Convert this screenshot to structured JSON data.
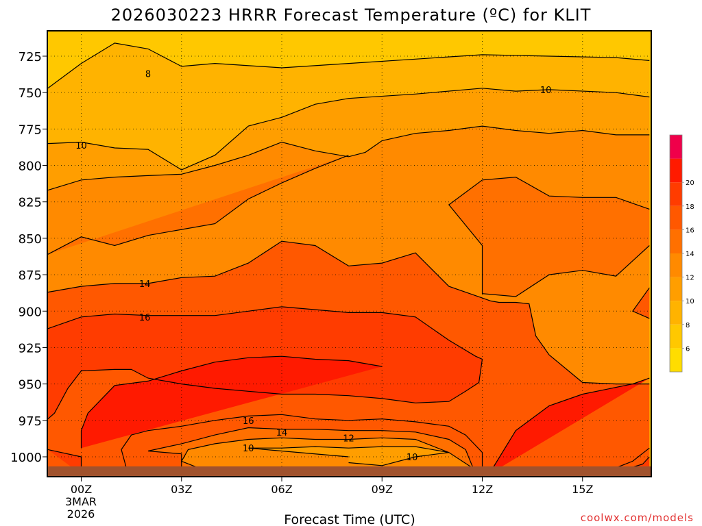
{
  "title": "2026030223 HRRR Forecast Temperature (ºC) for KLIT",
  "xlabel": "Forecast Time (UTC)",
  "watermark": "coolwx.com/models",
  "chart_data": {
    "type": "heatmap",
    "title": "2026030223 HRRR Forecast Temperature (ºC) for KLIT",
    "xlabel": "Forecast Time (UTC)",
    "ylabel": "",
    "x_ticks": [
      "00Z",
      "03Z",
      "06Z",
      "09Z",
      "12Z",
      "15Z"
    ],
    "x_date_label": [
      "3MAR",
      "2026"
    ],
    "y_ticks": [
      725,
      750,
      775,
      800,
      825,
      850,
      875,
      900,
      925,
      950,
      975,
      1000
    ],
    "xlim_hours": [
      -1,
      17
    ],
    "ylim_hPa": [
      710,
      1012
    ],
    "grid": "dotted",
    "colorbar": {
      "levels": [
        4,
        6,
        8,
        10,
        12,
        14,
        16,
        18,
        20,
        22
      ],
      "labels": [
        "6",
        "8",
        "10",
        "12",
        "14",
        "16",
        "18",
        "20"
      ],
      "colors": [
        "#ffdd00",
        "#ffc800",
        "#ffb300",
        "#ff9e00",
        "#ff8a00",
        "#ff7000",
        "#ff5800",
        "#ff3c00",
        "#ff1a00",
        "#f0004a"
      ],
      "placement": "right"
    },
    "contour_labels": [
      {
        "text": "8",
        "hour": 2.0,
        "p": 737
      },
      {
        "text": "10",
        "hour": 13.9,
        "p": 748
      },
      {
        "text": "10",
        "hour": 0.0,
        "p": 786
      },
      {
        "text": "14",
        "hour": 1.9,
        "p": 881
      },
      {
        "text": "16",
        "hour": 1.9,
        "p": 904
      },
      {
        "text": "16",
        "hour": 5.0,
        "p": 975
      },
      {
        "text": "14",
        "hour": 6.0,
        "p": 983
      },
      {
        "text": "12",
        "hour": 8.0,
        "p": 987
      },
      {
        "text": "10",
        "hour": 5.0,
        "p": 994
      },
      {
        "text": "10",
        "hour": 9.9,
        "p": 1000
      }
    ],
    "series": [
      {
        "level": 8,
        "points": [
          [
            -1,
            747
          ],
          [
            0,
            730
          ],
          [
            1,
            716
          ],
          [
            2,
            720
          ],
          [
            3,
            732
          ],
          [
            4,
            730
          ],
          [
            6,
            733
          ],
          [
            8,
            730
          ],
          [
            10,
            727
          ],
          [
            12,
            724
          ],
          [
            14,
            725
          ],
          [
            16,
            726
          ],
          [
            17,
            728
          ]
        ]
      },
      {
        "level": 10,
        "points": [
          [
            -1,
            785
          ],
          [
            0,
            784
          ],
          [
            1,
            788
          ],
          [
            2,
            789
          ],
          [
            3,
            803
          ],
          [
            4,
            793
          ],
          [
            5,
            773
          ],
          [
            6,
            767
          ],
          [
            7,
            758
          ],
          [
            8,
            754
          ],
          [
            10,
            751
          ],
          [
            12,
            747
          ],
          [
            13,
            749
          ],
          [
            14,
            748
          ],
          [
            16,
            750
          ],
          [
            17,
            753
          ]
        ]
      },
      {
        "level": 12,
        "points": [
          [
            -1,
            817
          ],
          [
            0,
            810
          ],
          [
            1,
            808
          ],
          [
            2,
            807
          ],
          [
            3,
            806
          ],
          [
            4,
            800
          ],
          [
            5,
            793
          ],
          [
            6,
            784
          ],
          [
            7,
            790
          ],
          [
            8,
            794
          ],
          [
            8.5,
            791
          ],
          [
            9,
            783
          ],
          [
            10,
            778
          ],
          [
            11,
            776
          ],
          [
            12,
            773
          ],
          [
            13,
            776
          ],
          [
            14,
            778
          ],
          [
            15,
            776
          ],
          [
            16,
            779
          ],
          [
            17,
            779
          ]
        ]
      },
      {
        "level": 14,
        "points": [
          [
            -1,
            861
          ],
          [
            0,
            849
          ],
          [
            1,
            855
          ],
          [
            2,
            848
          ],
          [
            3,
            844
          ],
          [
            4,
            840
          ],
          [
            5,
            823
          ],
          [
            6,
            812
          ],
          [
            7,
            802
          ],
          [
            8,
            793
          ]
        ]
      },
      {
        "level": 14,
        "points": [
          [
            17,
            830
          ],
          [
            16,
            822
          ],
          [
            15,
            822
          ],
          [
            14,
            821
          ],
          [
            13,
            808
          ],
          [
            12,
            810
          ],
          [
            11,
            827
          ],
          [
            12,
            855
          ],
          [
            12,
            888
          ],
          [
            13,
            890
          ],
          [
            14,
            875
          ],
          [
            15,
            872
          ],
          [
            16,
            876
          ],
          [
            17,
            855
          ]
        ]
      },
      {
        "level": 16,
        "points": [
          [
            -1,
            887
          ],
          [
            0,
            883
          ],
          [
            1,
            881
          ],
          [
            2,
            881
          ],
          [
            3,
            877
          ],
          [
            4,
            876
          ],
          [
            5,
            867
          ],
          [
            6,
            852
          ],
          [
            7,
            855
          ],
          [
            8,
            869
          ],
          [
            9,
            867
          ],
          [
            10,
            860
          ],
          [
            11,
            883
          ],
          [
            12,
            891
          ],
          [
            12.25,
            893
          ],
          [
            12.5,
            894
          ],
          [
            13,
            894
          ],
          [
            13.4,
            895
          ],
          [
            13.6,
            917
          ],
          [
            14,
            930
          ],
          [
            15,
            949
          ],
          [
            16,
            950
          ],
          [
            17,
            950
          ]
        ]
      },
      {
        "level": 18,
        "points": [
          [
            -1,
            912
          ],
          [
            0,
            904
          ],
          [
            1,
            902
          ],
          [
            2,
            903
          ],
          [
            3,
            903
          ],
          [
            4,
            903
          ],
          [
            5,
            900
          ],
          [
            6,
            897
          ],
          [
            7,
            899
          ],
          [
            8,
            901
          ],
          [
            9,
            901
          ],
          [
            10,
            904
          ],
          [
            11,
            920
          ],
          [
            11.8,
            931
          ],
          [
            12,
            933
          ],
          [
            11.9,
            949
          ],
          [
            11.5,
            955
          ],
          [
            11,
            962
          ],
          [
            10,
            963
          ],
          [
            9,
            960
          ],
          [
            8,
            958
          ],
          [
            7,
            957
          ],
          [
            6,
            957
          ],
          [
            5,
            955
          ],
          [
            4,
            953
          ],
          [
            3,
            950
          ],
          [
            2,
            946
          ],
          [
            1.5,
            940
          ],
          [
            1,
            940
          ],
          [
            0,
            941
          ],
          [
            -0.4,
            953
          ],
          [
            -0.8,
            970
          ],
          [
            -1,
            974
          ]
        ]
      },
      {
        "level": 20,
        "points": [
          [
            0,
            994
          ],
          [
            0,
            982
          ],
          [
            0.2,
            970
          ],
          [
            1,
            951
          ],
          [
            2,
            948
          ],
          [
            3,
            941
          ],
          [
            4,
            935
          ],
          [
            5,
            932
          ],
          [
            6,
            931
          ],
          [
            7,
            933
          ],
          [
            8,
            934
          ],
          [
            9,
            938
          ]
        ]
      },
      {
        "level": 20,
        "points": [
          [
            17,
            946
          ],
          [
            16.5,
            950
          ],
          [
            15,
            957
          ],
          [
            14,
            965
          ],
          [
            13,
            982
          ],
          [
            12.2,
            1012
          ]
        ]
      },
      {
        "level": 18,
        "points": [
          [
            12,
            1012
          ],
          [
            12,
            997
          ],
          [
            11.5,
            985
          ],
          [
            11,
            979
          ],
          [
            10,
            976
          ],
          [
            9,
            974
          ],
          [
            8,
            975
          ],
          [
            7,
            974
          ],
          [
            6,
            971
          ],
          [
            5,
            972
          ],
          [
            4,
            975
          ],
          [
            3,
            979
          ],
          [
            2,
            982
          ],
          [
            1.5,
            985
          ],
          [
            1.2,
            995
          ],
          [
            1.4,
            1012
          ]
        ]
      },
      {
        "level": 16,
        "points": [
          [
            3,
            1012
          ],
          [
            3,
            998
          ],
          [
            2,
            996
          ],
          [
            3,
            991
          ],
          [
            4,
            985
          ],
          [
            5,
            980
          ],
          [
            6,
            981
          ],
          [
            7,
            981
          ],
          [
            8,
            982
          ],
          [
            9,
            982
          ],
          [
            10,
            983
          ],
          [
            11,
            988
          ],
          [
            11.5,
            995
          ],
          [
            11.8,
            1012
          ]
        ]
      },
      {
        "level": 14,
        "points": [
          [
            4,
            1012
          ],
          [
            3,
            1003
          ],
          [
            3.2,
            995
          ],
          [
            4,
            991
          ],
          [
            5,
            988
          ],
          [
            6,
            987
          ],
          [
            7,
            988
          ],
          [
            8,
            988
          ],
          [
            9,
            987
          ],
          [
            10,
            988
          ],
          [
            11,
            997
          ],
          [
            12,
            1012
          ]
        ]
      },
      {
        "level": 12,
        "points": [
          [
            8,
            1004
          ],
          [
            9,
            1006
          ],
          [
            10,
            1000
          ],
          [
            11,
            997
          ],
          [
            10,
            993
          ],
          [
            9,
            993
          ],
          [
            8,
            994
          ],
          [
            7,
            993
          ],
          [
            6,
            994
          ],
          [
            5,
            994
          ],
          [
            6,
            996
          ],
          [
            8,
            1000
          ]
        ]
      },
      {
        "level": 16,
        "points": [
          [
            15.5,
            1012
          ],
          [
            16.5,
            1003
          ],
          [
            17,
            994
          ]
        ]
      },
      {
        "level": 18,
        "points": [
          [
            15.8,
            1012
          ],
          [
            16.8,
            1005
          ],
          [
            17,
            1000
          ]
        ]
      },
      {
        "level": 16,
        "points": [
          [
            17,
            884
          ],
          [
            16.5,
            900
          ],
          [
            17,
            905
          ]
        ]
      },
      {
        "level": 18,
        "points": [
          [
            -1,
            995
          ],
          [
            0,
            1000
          ],
          [
            0,
            1012
          ]
        ]
      }
    ]
  }
}
